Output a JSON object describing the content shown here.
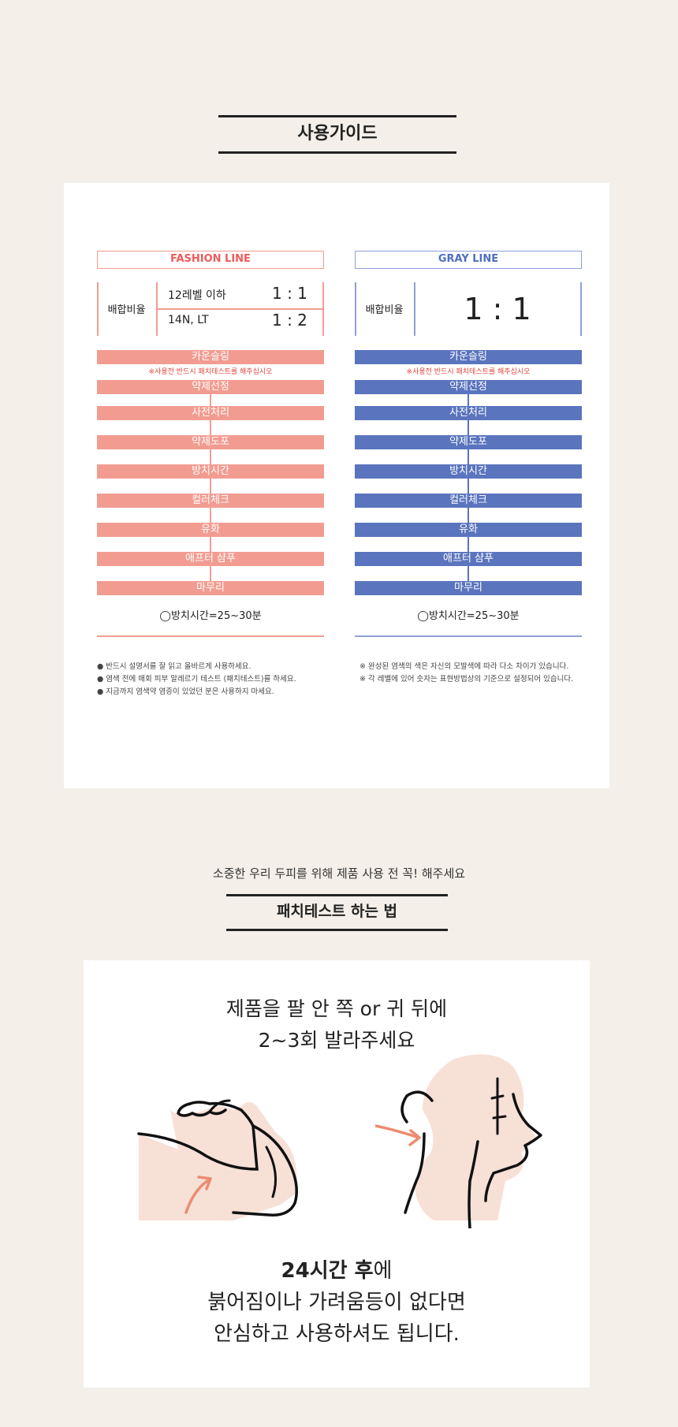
{
  "guide": {
    "title": "사용가이드",
    "fashion": {
      "label": "FASHION LINE",
      "ratio_label": "배합비율",
      "rows": [
        {
          "level": "12레벨 이하",
          "ratio": "1 : 1"
        },
        {
          "level": "14N, LT",
          "ratio": "1 : 2"
        }
      ],
      "accent": "#f29c91",
      "title_color": "#ef5a5a"
    },
    "gray": {
      "label": "GRAY LINE",
      "ratio_label": "배합비율",
      "ratio": "1 : 1",
      "accent": "#5a74be",
      "title_color": "#4f6ec2"
    },
    "steps": [
      "카운슬링",
      "약제선정",
      "사전처리",
      "약제도포",
      "방치시간",
      "컬러체크",
      "유화",
      "애프터 샴푸",
      "마무리"
    ],
    "warning": "※사용전 반드시 패치테스트를 해주십시오",
    "time_note": "◯방치시간=25~30분",
    "notes_left": [
      "●  반드시 설명서를 잘 읽고 올바르게 사용하세요.",
      "●  염색 전에 매회 피부 알레르기 테스트 (패치테스트)를 하세요.",
      "●  지금까지 염색약 염증이 있었던 분은 사용하지 마세요."
    ],
    "notes_right": [
      "※   완성된 염색의 색은 자신의 모발색에 따라 다소 차이가 있습니다.",
      "※   각 레벨에 있어 숫자는 표현방법상의 기준으로 설정되어 있습니다."
    ]
  },
  "patch": {
    "subtitle": "소중한 우리 두피를 위해 제품 사용 전 꼭! 해주세요",
    "title": "패치테스트 하는 법",
    "instruction_line1": "제품을 팔 안 쪽 or 귀 뒤에",
    "instruction_line2": "2~3회 발라주세요",
    "result_bold": "24시간 후",
    "result_line1_suffix": "에",
    "result_line2": "붉어짐이나 가려움등이 없다면",
    "result_line3": "안심하고 사용하셔도 됩니다.",
    "colors": {
      "skin": "#f7e0d6",
      "arrow": "#ec8b72"
    }
  }
}
